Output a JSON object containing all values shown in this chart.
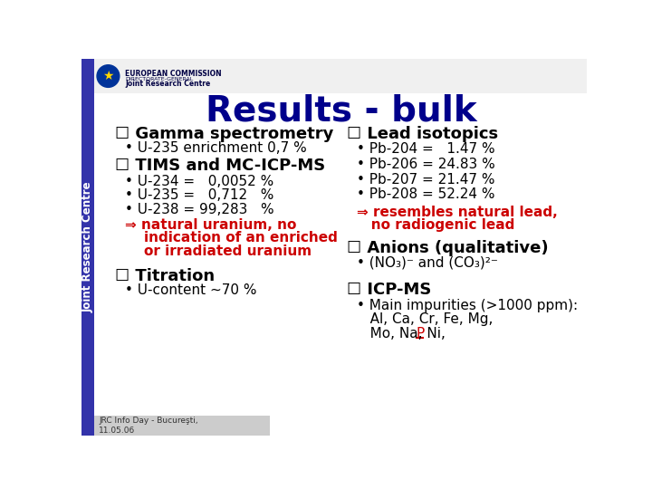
{
  "background_color": "#ffffff",
  "title": "Results - bulk",
  "title_color": "#00008B",
  "title_fontsize": 28,
  "sidebar_text": "Joint Research Centre",
  "footer_text": "JRC Info Day - Bucureşti,\n11.05.06",
  "sections": {
    "gamma": {
      "header": "☐ Gamma spectrometry",
      "bullet": "• U-235 enrichment 0,7 %"
    },
    "tims": {
      "header": "☐ TIMS and MC-ICP-MS",
      "bullets": [
        "• U-234 =   0,0052 %",
        "• U-235 =   0,712   %",
        "• U-238 = 99,283   %"
      ],
      "arrow_text_line1": "⇒ natural uranium, no",
      "arrow_text_line2": "    indication of an enriched",
      "arrow_text_line3": "    or irradiated uranium",
      "arrow_color": "#cc0000"
    },
    "titration": {
      "header": "☐ Titration",
      "bullet": "• U-content ~70 %"
    },
    "lead": {
      "header": "☐ Lead isotopics",
      "bullets": [
        "• Pb-204 =   1.47 %",
        "• Pb-206 = 24.83 %",
        "• Pb-207 = 21.47 %",
        "• Pb-208 = 52.24 %"
      ],
      "arrow_text_line1": "⇒ resembles natural lead,",
      "arrow_text_line2": "   no radiogenic lead",
      "arrow_color": "#cc0000"
    },
    "anions": {
      "header": "☐ Anions (qualitative)",
      "bullet": "• (NO₃)⁻ and (CO₃)²⁻"
    },
    "icpms": {
      "header": "☐ ICP-MS",
      "bullet_line1": "• Main impurities (>1000 ppm):",
      "bullet_line2": "   Al, Ca, Cr, Fe, Mg,",
      "bullet_line3": "   Mo, Na, Ni, "
    }
  }
}
